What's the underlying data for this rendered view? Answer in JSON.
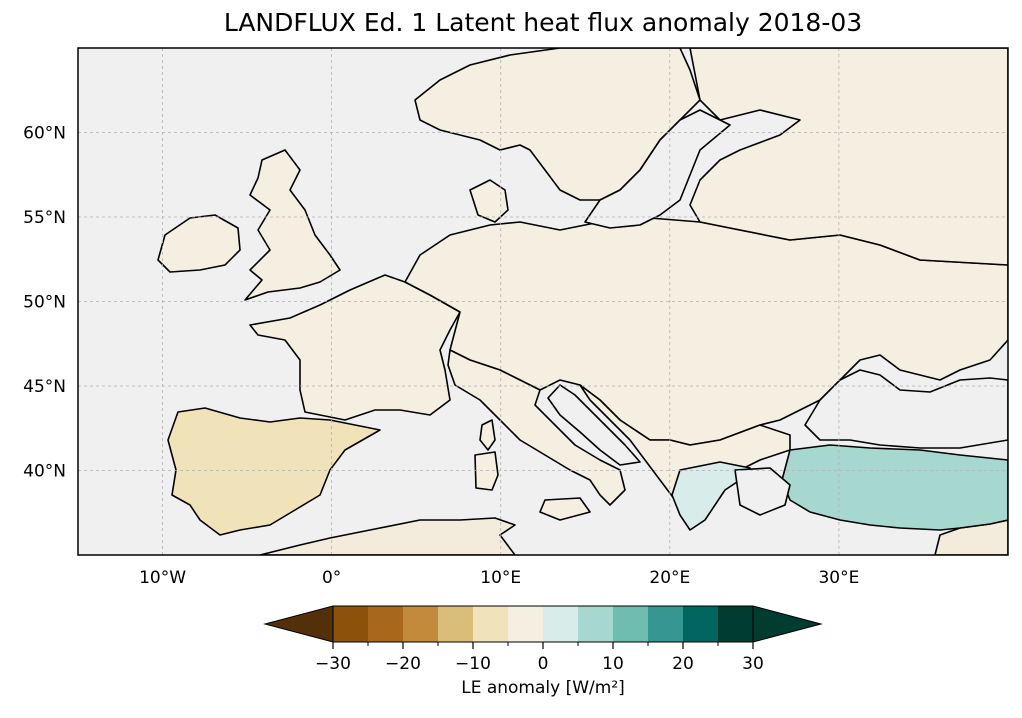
{
  "title": "LANDFLUX Ed. 1 Latent heat flux anomaly 2018-03",
  "map": {
    "lon_range": [
      -15,
      40
    ],
    "lat_range": [
      35,
      65
    ],
    "x_ticks": [
      {
        "lon": -10,
        "label": "10°W"
      },
      {
        "lon": 0,
        "label": "0°"
      },
      {
        "lon": 10,
        "label": "10°E"
      },
      {
        "lon": 20,
        "label": "20°E"
      },
      {
        "lon": 30,
        "label": "30°E"
      }
    ],
    "y_ticks": [
      {
        "lat": 40,
        "label": "40°N"
      },
      {
        "lat": 45,
        "label": "45°N"
      },
      {
        "lat": 50,
        "label": "50°N"
      },
      {
        "lat": 55,
        "label": "55°N"
      },
      {
        "lat": 60,
        "label": "60°N"
      }
    ],
    "ocean_color": "#f0f0f0",
    "gridlines": true
  },
  "colorbar": {
    "label": "LE anomaly [W/m²]",
    "levels": [
      -30,
      -25,
      -20,
      -15,
      -10,
      -5,
      0,
      5,
      10,
      15,
      20,
      25,
      30
    ],
    "tick_labels": [
      "−30",
      "−20",
      "−10",
      "0",
      "10",
      "20",
      "30"
    ],
    "tick_values": [
      -30,
      -20,
      -10,
      0,
      10,
      20,
      30
    ],
    "colors": [
      "#8c510a",
      "#a9671b",
      "#c48a3c",
      "#dbbd7a",
      "#f1e3b9",
      "#f4efe0",
      "#d8ece9",
      "#a6d8cf",
      "#6fbdb0",
      "#35978f",
      "#01665e",
      "#003c30"
    ],
    "extend_colors": {
      "low": "#54300a",
      "high": "#003c30"
    }
  }
}
